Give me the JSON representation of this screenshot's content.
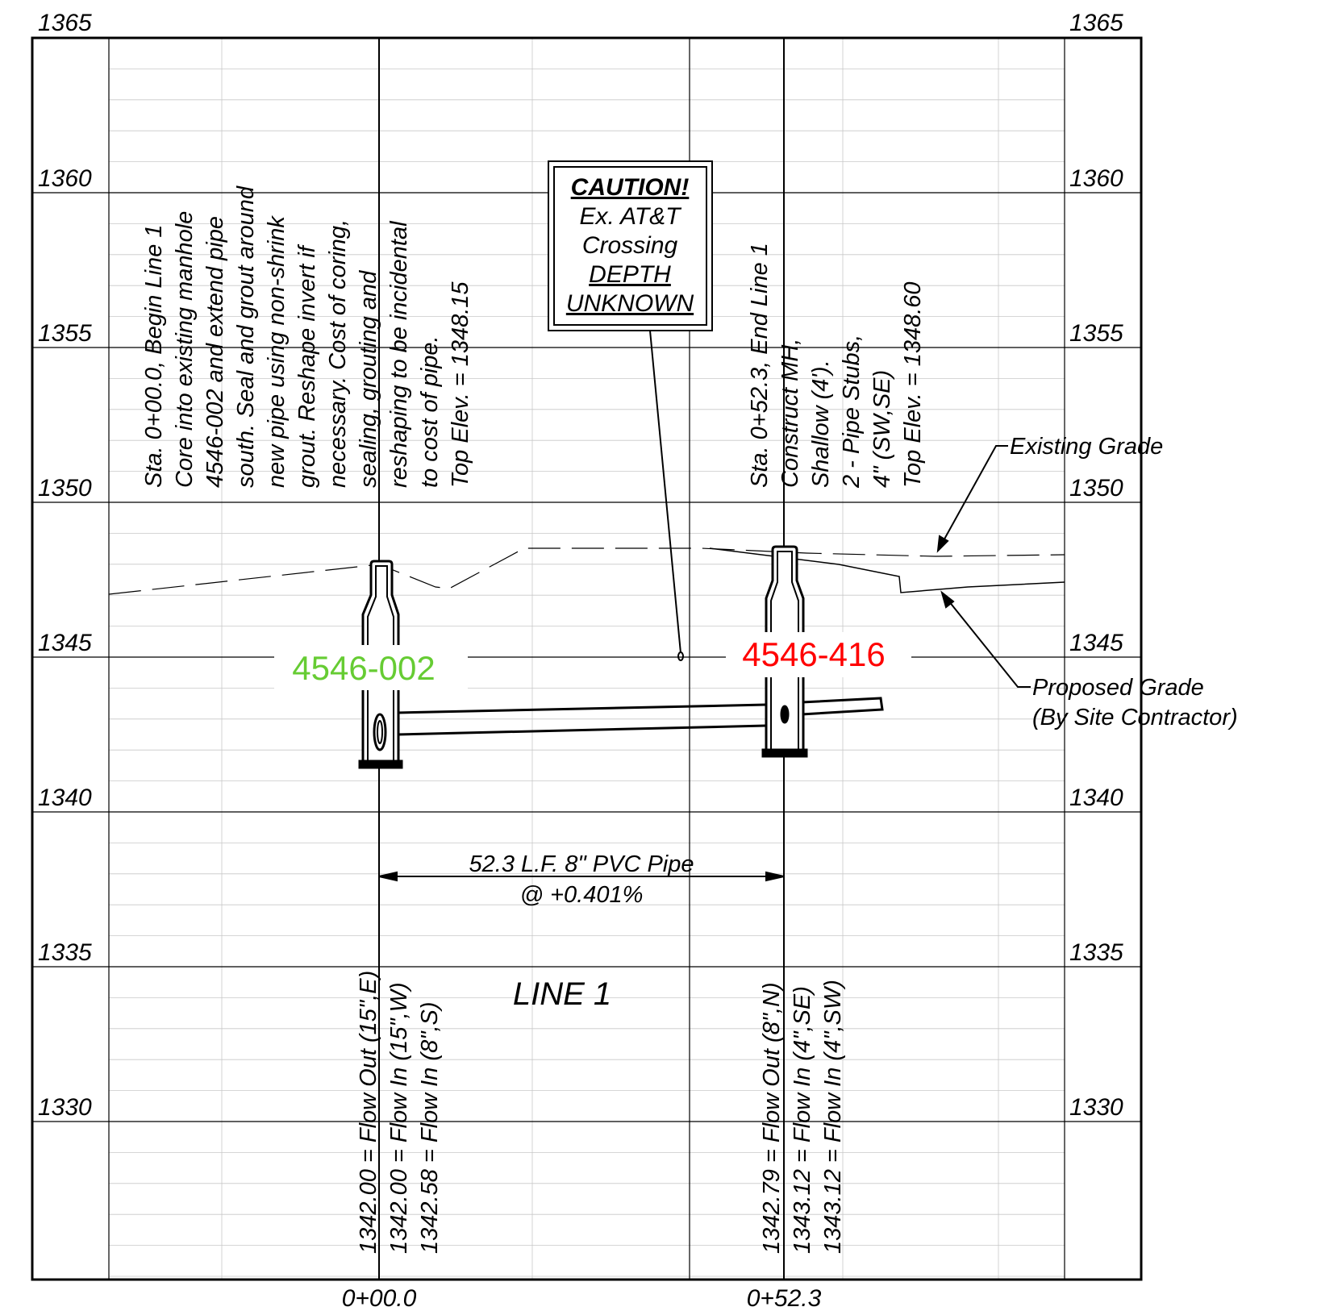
{
  "colors": {
    "line": "#000000",
    "minor_grid": "#c8c8c8",
    "manhole_existing": "#66cc33",
    "manhole_new": "#ff0000"
  },
  "elevation_labels": [
    "1365",
    "1360",
    "1355",
    "1350",
    "1345",
    "1340",
    "1335",
    "1330"
  ],
  "stations": [
    "0+00.0",
    "0+52.3"
  ],
  "notes": {
    "begin": [
      "Sta. 0+00.0, Begin Line 1",
      "Core into existing manhole",
      "4546-002 and extend pipe",
      "south. Seal and grout around",
      "new pipe using non-shrink",
      "grout. Reshape invert if",
      "necessary. Cost of coring,",
      "sealing, grouting and",
      "reshaping to be incidental",
      "to cost of pipe.",
      "Top Elev. = 1348.15"
    ],
    "end": [
      "Sta. 0+52.3, End Line 1",
      "Construct MH,",
      "Shallow (4').",
      "2 - Pipe Stubs,",
      "4\" (SW,SE)",
      "Top Elev. = 1348.60"
    ]
  },
  "caution": [
    "CAUTION!",
    "Ex. AT&T",
    "Crossing",
    "DEPTH",
    "UNKNOWN"
  ],
  "manholes": {
    "existing_id": "4546-002",
    "new_id": "4546-416"
  },
  "pipe": {
    "length_label": "52.3 L.F. 8\" PVC Pipe",
    "slope_label": "@ +0.401%",
    "line_name": "LINE 1"
  },
  "grade_labels": {
    "existing": "Existing Grade",
    "proposed_1": "Proposed Grade",
    "proposed_2": "(By Site Contractor)"
  },
  "inverts": {
    "begin": [
      "1342.00 = Flow Out (15\",E)",
      "1342.00 = Flow In (15\",W)",
      "1342.58 = Flow In (8\",S)"
    ],
    "end": [
      "1342.79 = Flow Out (8\",N)",
      "1343.12 = Flow In (4\",SE)",
      "1343.12 = Flow In (4\",SW)"
    ]
  }
}
